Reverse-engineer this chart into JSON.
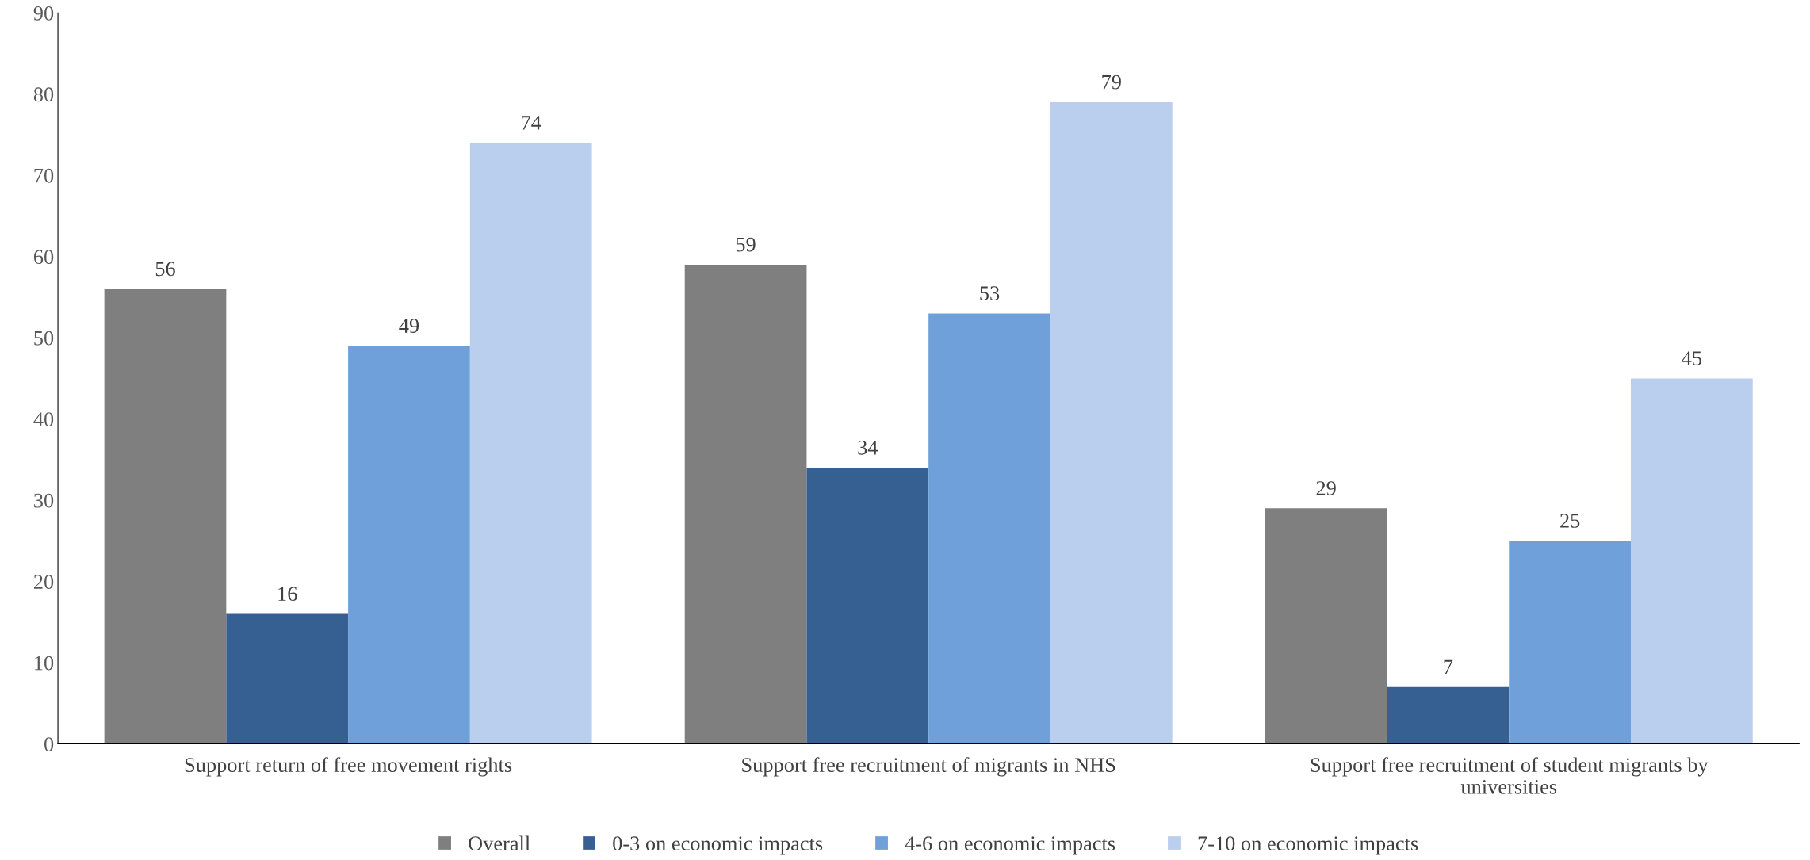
{
  "chart_data": {
    "type": "bar",
    "categories": [
      "Support return of free movement rights",
      "Support free recruitment of migrants in NHS",
      "Support free recruitment of student migrants by universities"
    ],
    "series": [
      {
        "name": "Overall",
        "color": "#7f7f7f",
        "values": [
          56,
          59,
          29
        ]
      },
      {
        "name": "0-3 on economic impacts",
        "color": "#376092",
        "values": [
          16,
          34,
          7
        ]
      },
      {
        "name": "4-6 on economic impacts",
        "color": "#6fa0da",
        "values": [
          49,
          53,
          25
        ]
      },
      {
        "name": "7-10 on economic impacts",
        "color": "#b9cfed",
        "values": [
          74,
          79,
          45
        ]
      }
    ],
    "ylim": [
      0,
      90
    ],
    "yticks": [
      0,
      10,
      20,
      30,
      40,
      50,
      60,
      70,
      80,
      90
    ],
    "data_labels": true,
    "grid": false,
    "legend": "bottom"
  }
}
